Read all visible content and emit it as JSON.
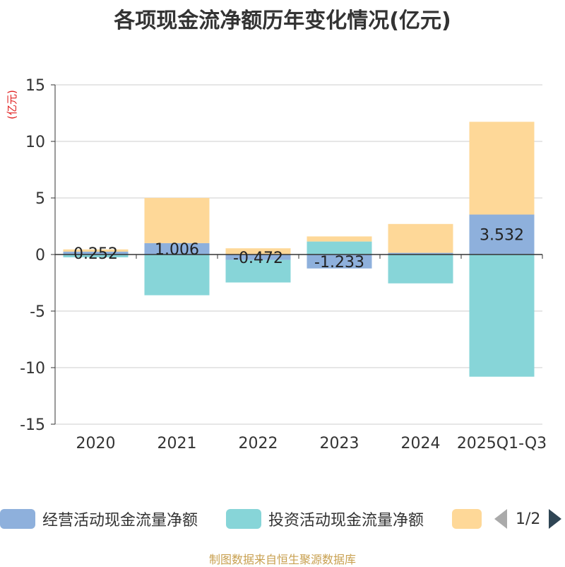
{
  "chart_data": {
    "type": "bar",
    "stacked": true,
    "title": "各项现金流净额历年变化情况(亿元)",
    "ylabel": "(亿元)",
    "xlabel": "",
    "categories": [
      "2020",
      "2021",
      "2022",
      "2023",
      "2024",
      "2025Q1-Q3"
    ],
    "ylim": [
      -15,
      15
    ],
    "yticks": [
      15,
      10,
      5,
      0,
      -5,
      -10,
      -15
    ],
    "ytick_labels": [
      "15",
      "10",
      "5",
      "0",
      "-5",
      "-10",
      "-15"
    ],
    "grid": true,
    "legend_position": "bottom",
    "series": [
      {
        "name": "经营活动现金流量净额",
        "color": "#8eb0dc",
        "values": [
          0.252,
          1.006,
          -0.472,
          -1.233,
          0.15,
          3.532
        ],
        "labels": [
          "0.252",
          "1.006",
          "-0.472",
          "-1.233",
          "",
          "3.532"
        ]
      },
      {
        "name": "投资活动现金流量净额",
        "color": "#87d5d8",
        "values": [
          -0.25,
          -3.6,
          -2.0,
          1.15,
          -2.55,
          -10.8
        ]
      },
      {
        "name": "",
        "color": "#fed898",
        "values": [
          0.2,
          4.0,
          0.55,
          0.45,
          2.55,
          8.2
        ]
      }
    ]
  },
  "legend": {
    "page_indicator": "1/2"
  },
  "source_text": "制图数据来自恒生聚源数据库"
}
